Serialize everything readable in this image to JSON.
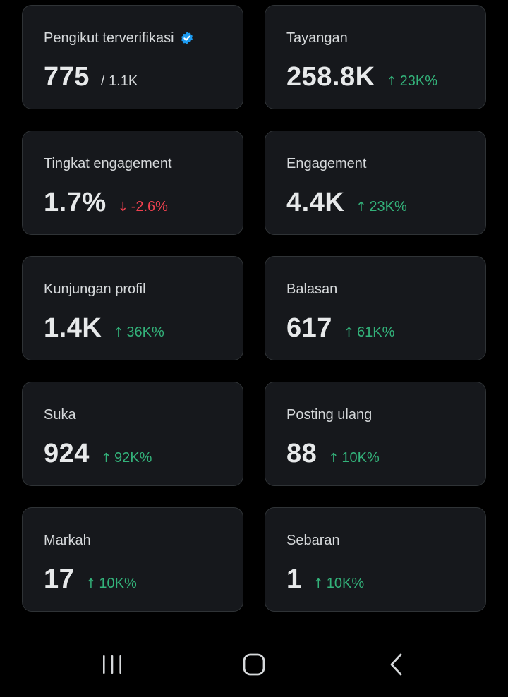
{
  "cards": [
    {
      "label": "Pengikut terverifikasi",
      "value": "775",
      "total": "/ 1.1K",
      "verified_icon": "verified-badge-icon"
    },
    {
      "label": "Tayangan",
      "value": "258.8K",
      "delta": "23K%",
      "direction": "up"
    },
    {
      "label": "Tingkat engagement",
      "value": "1.7%",
      "delta": "-2.6%",
      "direction": "down"
    },
    {
      "label": "Engagement",
      "value": "4.4K",
      "delta": "23K%",
      "direction": "up"
    },
    {
      "label": "Kunjungan profil",
      "value": "1.4K",
      "delta": "36K%",
      "direction": "up"
    },
    {
      "label": "Balasan",
      "value": "617",
      "delta": "61K%",
      "direction": "up"
    },
    {
      "label": "Suka",
      "value": "924",
      "delta": "92K%",
      "direction": "up"
    },
    {
      "label": "Posting ulang",
      "value": "88",
      "delta": "10K%",
      "direction": "up"
    },
    {
      "label": "Markah",
      "value": "17",
      "delta": "10K%",
      "direction": "up"
    },
    {
      "label": "Sebaran",
      "value": "1",
      "delta": "10K%",
      "direction": "up"
    }
  ],
  "colors": {
    "up": "#33b27a",
    "down": "#f0414f",
    "verified": "#1d9bf0",
    "card_bg": "#16181c"
  },
  "arrows": {
    "up": "↑",
    "down": "↓"
  },
  "navbar": {
    "recents_icon": "recent-apps-icon",
    "home_icon": "home-icon",
    "back_icon": "back-icon"
  }
}
